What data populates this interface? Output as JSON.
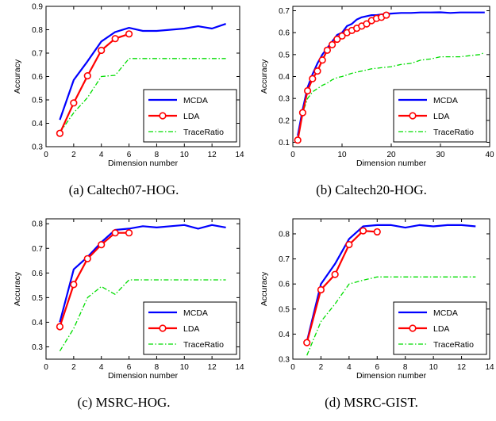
{
  "chart_data": [
    {
      "type": "line",
      "caption": "(a) Caltech07-HOG.",
      "xlabel": "Dimension number",
      "ylabel": "Accuracy",
      "xlim": [
        0,
        14
      ],
      "ylim": [
        0.3,
        0.9
      ],
      "xticks": [
        "0",
        "2",
        "4",
        "6",
        "8",
        "10",
        "12",
        "14"
      ],
      "yticks": [
        "0.3",
        "0.4",
        "0.5",
        "0.6",
        "0.7",
        "0.8",
        "0.9"
      ],
      "legend": "lower-right",
      "series": [
        {
          "name": "MCDA",
          "color": "#0000ff",
          "style": "solid",
          "x": [
            1,
            2,
            3,
            4,
            5,
            6,
            7,
            8,
            9,
            10,
            11,
            12,
            13
          ],
          "y": [
            0.415,
            0.585,
            0.665,
            0.75,
            0.79,
            0.808,
            0.795,
            0.795,
            0.8,
            0.805,
            0.815,
            0.805,
            0.825
          ]
        },
        {
          "name": "LDA",
          "color": "#ff0000",
          "style": "solid-marker",
          "x": [
            1,
            2,
            3,
            4,
            5,
            6
          ],
          "y": [
            0.357,
            0.487,
            0.603,
            0.712,
            0.762,
            0.782
          ]
        },
        {
          "name": "TraceRatio",
          "color": "#00dd00",
          "style": "dashdot",
          "x": [
            1,
            2,
            3,
            4,
            5,
            6,
            7,
            8,
            9,
            10,
            11,
            12,
            13
          ],
          "y": [
            0.36,
            0.445,
            0.51,
            0.6,
            0.605,
            0.677,
            0.677,
            0.677,
            0.677,
            0.677,
            0.677,
            0.677,
            0.677
          ]
        }
      ]
    },
    {
      "type": "line",
      "caption": "(b) Caltech20-HOG.",
      "xlabel": "Dimension number",
      "ylabel": "Accuracy",
      "xlim": [
        0,
        40
      ],
      "ylim": [
        0.08,
        0.72
      ],
      "xticks": [
        "0",
        "10",
        "20",
        "30",
        "40"
      ],
      "yticks": [
        "0.1",
        "0.2",
        "0.3",
        "0.4",
        "0.5",
        "0.6",
        "0.7"
      ],
      "legend": "lower-right",
      "series": [
        {
          "name": "MCDA",
          "color": "#0000ff",
          "style": "solid",
          "x": [
            1,
            2,
            3,
            4,
            5,
            6,
            7,
            8,
            9,
            10,
            11,
            12,
            13,
            14,
            15,
            16,
            17,
            18,
            19,
            20,
            22,
            24,
            26,
            28,
            30,
            32,
            34,
            36,
            38,
            39
          ],
          "y": [
            0.13,
            0.25,
            0.35,
            0.41,
            0.46,
            0.5,
            0.53,
            0.56,
            0.59,
            0.6,
            0.63,
            0.64,
            0.66,
            0.67,
            0.675,
            0.68,
            0.68,
            0.683,
            0.685,
            0.687,
            0.69,
            0.69,
            0.692,
            0.692,
            0.693,
            0.69,
            0.692,
            0.692,
            0.692,
            0.692
          ]
        },
        {
          "name": "LDA",
          "color": "#ff0000",
          "style": "solid-marker",
          "x": [
            1,
            2,
            3,
            4,
            5,
            6,
            7,
            8,
            9,
            10,
            11,
            12,
            13,
            14,
            15,
            16,
            17,
            18,
            19
          ],
          "y": [
            0.11,
            0.235,
            0.335,
            0.39,
            0.425,
            0.475,
            0.52,
            0.545,
            0.57,
            0.585,
            0.6,
            0.61,
            0.62,
            0.63,
            0.64,
            0.655,
            0.665,
            0.67,
            0.68
          ]
        },
        {
          "name": "TraceRatio",
          "color": "#00dd00",
          "style": "dashdot",
          "x": [
            1,
            2,
            3,
            4,
            5,
            6,
            7,
            8,
            9,
            10,
            12,
            14,
            16,
            18,
            20,
            22,
            24,
            26,
            28,
            30,
            32,
            34,
            36,
            38,
            39
          ],
          "y": [
            0.12,
            0.235,
            0.3,
            0.33,
            0.345,
            0.36,
            0.37,
            0.385,
            0.395,
            0.4,
            0.415,
            0.425,
            0.435,
            0.44,
            0.445,
            0.455,
            0.46,
            0.475,
            0.48,
            0.49,
            0.49,
            0.49,
            0.495,
            0.5,
            0.51
          ]
        }
      ]
    },
    {
      "type": "line",
      "caption": "(c) MSRC-HOG.",
      "xlabel": "Dimension number",
      "ylabel": "Accuracy",
      "xlim": [
        0,
        14
      ],
      "ylim": [
        0.25,
        0.82
      ],
      "xticks": [
        "0",
        "2",
        "4",
        "6",
        "8",
        "10",
        "12",
        "14"
      ],
      "yticks": [
        "0.3",
        "0.4",
        "0.5",
        "0.6",
        "0.7",
        "0.8"
      ],
      "legend": "lower-right",
      "series": [
        {
          "name": "MCDA",
          "color": "#0000ff",
          "style": "solid",
          "x": [
            1,
            2,
            3,
            4,
            5,
            6,
            7,
            8,
            9,
            10,
            11,
            12,
            13
          ],
          "y": [
            0.4,
            0.615,
            0.665,
            0.725,
            0.775,
            0.78,
            0.79,
            0.785,
            0.79,
            0.795,
            0.78,
            0.795,
            0.785
          ]
        },
        {
          "name": "LDA",
          "color": "#ff0000",
          "style": "solid-marker",
          "x": [
            1,
            2,
            3,
            4,
            5,
            6
          ],
          "y": [
            0.382,
            0.553,
            0.658,
            0.715,
            0.763,
            0.763
          ]
        },
        {
          "name": "TraceRatio",
          "color": "#00dd00",
          "style": "dashdot",
          "x": [
            1,
            2,
            3,
            4,
            5,
            6,
            7,
            8,
            9,
            10,
            11,
            12,
            13
          ],
          "y": [
            0.283,
            0.375,
            0.5,
            0.545,
            0.513,
            0.572,
            0.572,
            0.572,
            0.572,
            0.572,
            0.572,
            0.572,
            0.572
          ]
        }
      ]
    },
    {
      "type": "line",
      "caption": "(d) MSRC-GIST.",
      "xlabel": "Dimension number",
      "ylabel": "Accuracy",
      "xlim": [
        0,
        14
      ],
      "ylim": [
        0.3,
        0.86
      ],
      "xticks": [
        "0",
        "2",
        "4",
        "6",
        "8",
        "10",
        "12",
        "14"
      ],
      "yticks": [
        "0.3",
        "0.4",
        "0.5",
        "0.6",
        "0.7",
        "0.8"
      ],
      "legend": "lower-right",
      "series": [
        {
          "name": "MCDA",
          "color": "#0000ff",
          "style": "solid",
          "x": [
            1,
            2,
            3,
            4,
            5,
            6,
            7,
            8,
            9,
            10,
            11,
            12,
            13
          ],
          "y": [
            0.37,
            0.6,
            0.68,
            0.78,
            0.83,
            0.835,
            0.835,
            0.825,
            0.835,
            0.83,
            0.835,
            0.835,
            0.83
          ]
        },
        {
          "name": "LDA",
          "color": "#ff0000",
          "style": "solid-marker",
          "x": [
            1,
            2,
            3,
            4,
            5,
            6
          ],
          "y": [
            0.366,
            0.577,
            0.638,
            0.757,
            0.812,
            0.808
          ]
        },
        {
          "name": "TraceRatio",
          "color": "#00dd00",
          "style": "dashdot",
          "x": [
            1,
            2,
            3,
            4,
            5,
            6,
            7,
            8,
            9,
            10,
            11,
            12,
            13
          ],
          "y": [
            0.315,
            0.45,
            0.52,
            0.6,
            0.615,
            0.628,
            0.628,
            0.628,
            0.628,
            0.628,
            0.628,
            0.628,
            0.628
          ]
        }
      ]
    }
  ]
}
